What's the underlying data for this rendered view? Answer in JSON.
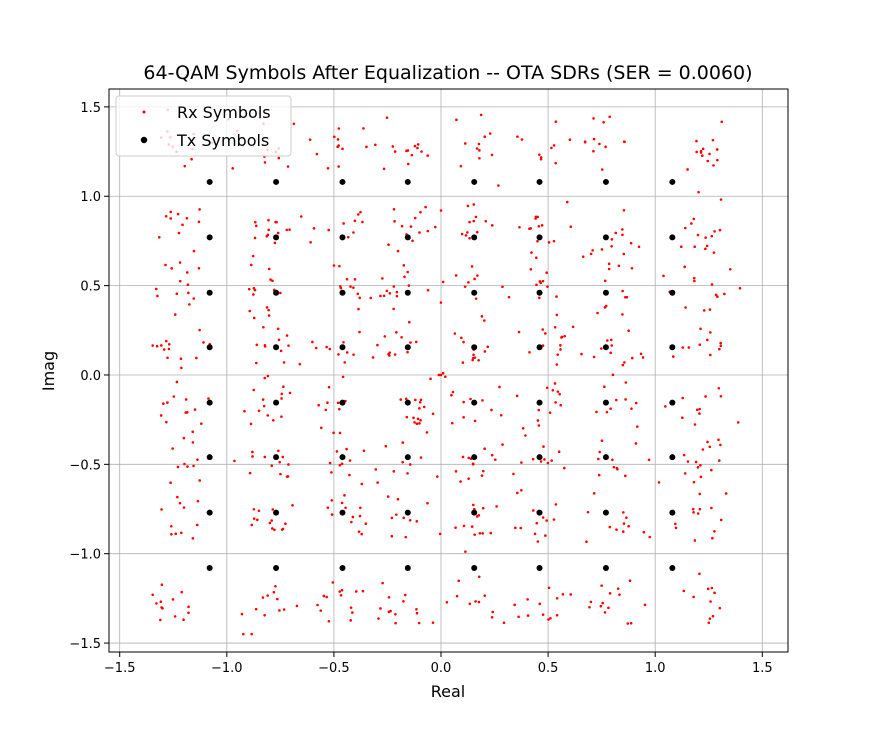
{
  "chart_data": {
    "type": "scatter",
    "title": "64-QAM Symbols After Equalization -- OTA SDRs (SER = 0.0060)",
    "xlabel": "Real",
    "ylabel": "Imag",
    "xlim": [
      -1.55,
      1.62
    ],
    "ylim": [
      -1.55,
      1.6
    ],
    "xticks": [
      -1.5,
      -1.0,
      -0.5,
      0.0,
      0.5,
      1.0,
      1.5
    ],
    "xtick_labels": [
      "−1.5",
      "−1.0",
      "−0.5",
      "0.0",
      "0.5",
      "1.0",
      "1.5"
    ],
    "yticks": [
      -1.5,
      -1.0,
      -0.5,
      0.0,
      0.5,
      1.0,
      1.5
    ],
    "ytick_labels": [
      "−1.5",
      "−1.0",
      "−0.5",
      "0.0",
      "0.5",
      "1.0",
      "1.5"
    ],
    "grid": true,
    "legend_position": "top-left",
    "series": [
      {
        "name": "Rx Symbols",
        "color": "#ff0000",
        "marker": "small-dot",
        "spread": 0.09,
        "points_per_symbol": 11,
        "note_points": "received symbols scattered around each constellation point",
        "stray_points": [
          [
            0.0,
            0.0
          ],
          [
            0.01,
            0.01
          ],
          [
            -0.01,
            0.0
          ],
          [
            0.02,
            -0.01
          ],
          [
            0.0,
            0.92
          ],
          [
            -0.15,
            0.5
          ]
        ]
      },
      {
        "name": "Tx Symbols",
        "color": "#000000",
        "marker": "dot",
        "levels": [
          -1.08,
          -0.77,
          -0.46,
          -0.155,
          0.155,
          0.46,
          0.77,
          1.08
        ]
      }
    ]
  }
}
